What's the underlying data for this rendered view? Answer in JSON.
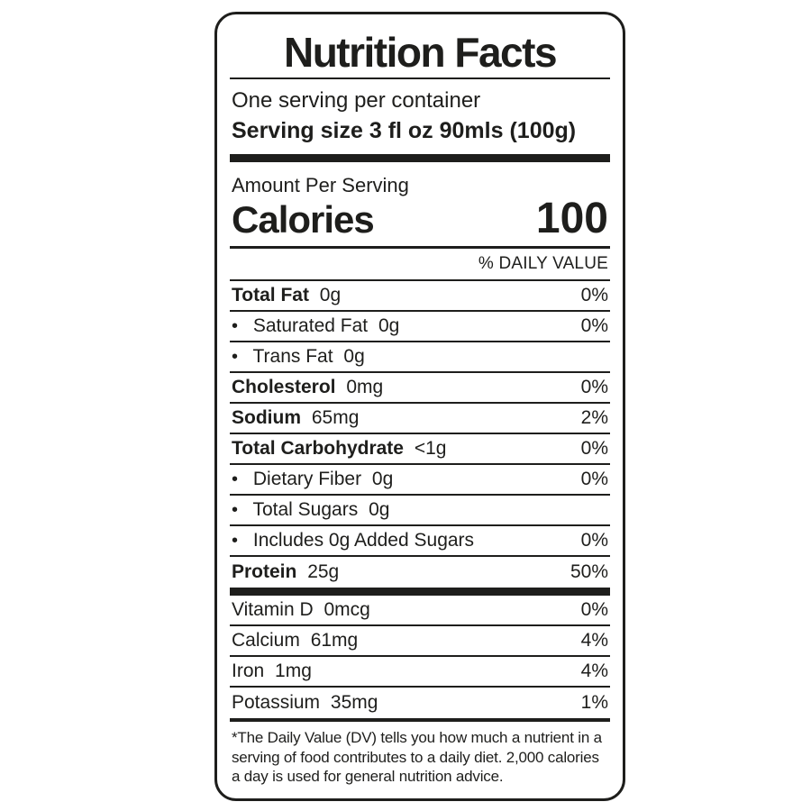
{
  "colors": {
    "ink": "#1e1e1c",
    "background": "#ffffff"
  },
  "label": {
    "title": "Nutrition Facts",
    "servings_per_container": "One serving per container",
    "serving_size": "Serving size 3 fl oz 90mls (100g)",
    "amount_per_serving": "Amount Per Serving",
    "calories_label": "Calories",
    "calories_value": "100",
    "daily_value_header": "% DAILY VALUE",
    "bullet_glyph": "•",
    "nutrients": [
      {
        "name": "Total Fat",
        "amount": "0g",
        "dv": "0%",
        "bold": true,
        "bullet": false
      },
      {
        "name": "Saturated Fat",
        "amount": "0g",
        "dv": "0%",
        "bold": false,
        "bullet": true
      },
      {
        "name": "Trans Fat",
        "amount": "0g",
        "dv": "",
        "bold": false,
        "bullet": true
      },
      {
        "name": "Cholesterol",
        "amount": "0mg",
        "dv": "0%",
        "bold": true,
        "bullet": false
      },
      {
        "name": "Sodium",
        "amount": "65mg",
        "dv": "2%",
        "bold": true,
        "bullet": false
      },
      {
        "name": "Total Carbohydrate",
        "amount": "<1g",
        "dv": "0%",
        "bold": true,
        "bullet": false
      },
      {
        "name": "Dietary Fiber",
        "amount": "0g",
        "dv": "0%",
        "bold": false,
        "bullet": true
      },
      {
        "name": "Total Sugars",
        "amount": "0g",
        "dv": "",
        "bold": false,
        "bullet": true
      },
      {
        "name": "Includes 0g Added Sugars",
        "amount": "",
        "dv": "0%",
        "bold": false,
        "bullet": true
      },
      {
        "name": "Protein",
        "amount": "25g",
        "dv": "50%",
        "bold": true,
        "bullet": false
      }
    ],
    "micronutrients": [
      {
        "name": "Vitamin D",
        "amount": "0mcg",
        "dv": "0%"
      },
      {
        "name": "Calcium",
        "amount": "61mg",
        "dv": "4%"
      },
      {
        "name": "Iron",
        "amount": "1mg",
        "dv": "4%"
      },
      {
        "name": "Potassium",
        "amount": "35mg",
        "dv": "1%"
      }
    ],
    "footnote": "*The Daily Value (DV) tells you how much a nutrient in a serving of food contributes to a daily diet. 2,000 calories a day is used for general nutrition advice."
  }
}
